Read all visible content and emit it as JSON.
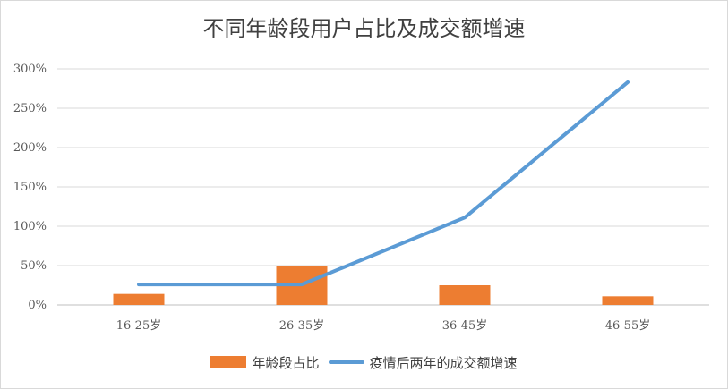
{
  "chart_data": {
    "type": "bar+line",
    "title": "不同年龄段用户占比及成交额增速",
    "categories": [
      "16-25岁",
      "26-35岁",
      "36-45岁",
      "46-55岁"
    ],
    "y_ticks": [
      "0%",
      "50%",
      "100%",
      "150%",
      "200%",
      "250%",
      "300%"
    ],
    "ylim": [
      0,
      300
    ],
    "grid": true,
    "legend_position": "bottom",
    "series": [
      {
        "name": "年龄段占比",
        "type": "bar",
        "color": "#ed7d31",
        "values": [
          14,
          49,
          25,
          11
        ]
      },
      {
        "name": "疫情后两年的成交额增速",
        "type": "line",
        "color": "#5b9bd5",
        "values": [
          26,
          26,
          111,
          283
        ]
      }
    ]
  }
}
